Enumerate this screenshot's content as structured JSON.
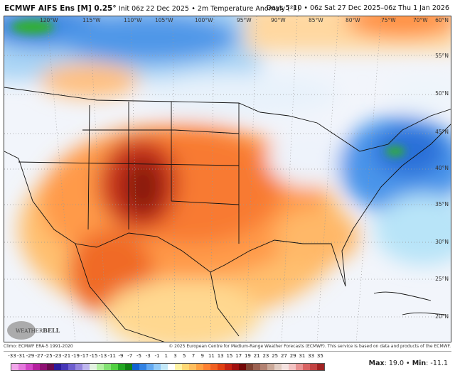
{
  "header": {
    "model": "ECMWF AIFS Ens [M] 0.25°",
    "init": "Init 06z 22 Dec 2025",
    "variable": "2m Temperature Anomaly (°F)",
    "valid": "Days 5–10 • 06z Sat 27 Dec 2025–06z Thu 1 Jan 2026"
  },
  "map": {
    "longitude_labels": [
      "120°W",
      "115°W",
      "110°W",
      "105°W",
      "100°W",
      "95°W",
      "90°W",
      "85°W",
      "80°W",
      "75°W",
      "70°W"
    ],
    "latitude_labels": [
      "60°N",
      "55°N",
      "50°N",
      "45°N",
      "40°N",
      "35°N",
      "30°N",
      "25°N",
      "20°N"
    ]
  },
  "footer": {
    "climo": "Climo: ECMWF ERA-5 1991-2020",
    "copyright": "© 2025 European Centre for Medium-Range Weather Forecasts (ECMWF). This service is based on data and products of the ECMWF.",
    "logo_text": "WeatherBELL",
    "max_label": "Max",
    "max_value": "19.0",
    "min_label": "Min",
    "min_value": "-11.1"
  },
  "colorbar": {
    "ticks": [
      "-33",
      "-31",
      "-29",
      "-27",
      "-25",
      "-23",
      "-21",
      "-19",
      "-17",
      "-15",
      "-13",
      "-11",
      "-9",
      "-7",
      "-5",
      "-3",
      "-1",
      "1",
      "3",
      "5",
      "7",
      "9",
      "11",
      "13",
      "15",
      "17",
      "19",
      "21",
      "23",
      "25",
      "27",
      "29",
      "31",
      "33",
      "35"
    ],
    "colors": [
      "#f2a6ea",
      "#e478dc",
      "#d246c6",
      "#b4209e",
      "#8e1072",
      "#6a0a4e",
      "#2c1a9c",
      "#4636b6",
      "#6e5ece",
      "#9686de",
      "#beb6ee",
      "#e2f2e0",
      "#b2f0a2",
      "#82e272",
      "#52d042",
      "#22a622",
      "#108012",
      "#1262d2",
      "#3282e2",
      "#62a8f0",
      "#92caf8",
      "#c4e8f8",
      "#ffffff",
      "#fff2a4",
      "#ffd874",
      "#ffbe5e",
      "#ffa042",
      "#ff8032",
      "#f06022",
      "#e04012",
      "#c42212",
      "#a01010",
      "#720808",
      "#804232",
      "#9c6252",
      "#b28272",
      "#caa898",
      "#e2ccc2",
      "#f4e2e0",
      "#f2c2c2",
      "#e89292",
      "#d86262",
      "#c24242",
      "#a02222"
    ]
  }
}
